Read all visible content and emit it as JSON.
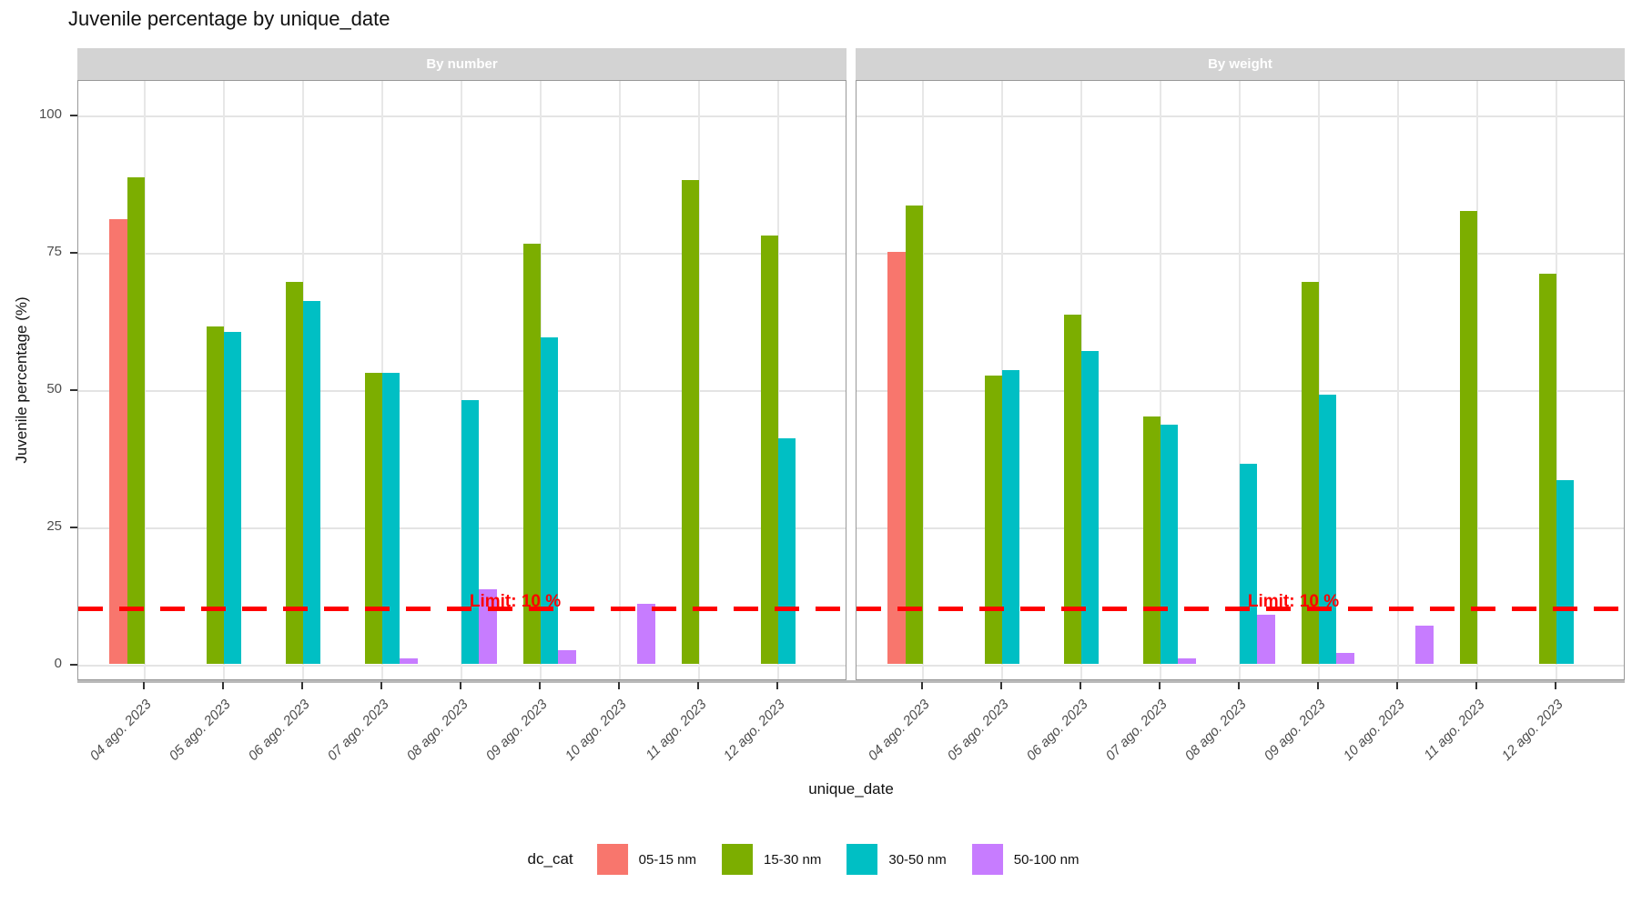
{
  "title": "Juvenile percentage by unique_date",
  "y_axis": {
    "title": "Juvenile percentage (%)",
    "ticks": [
      0,
      25,
      50,
      75,
      100
    ]
  },
  "x_axis": {
    "title": "unique_date"
  },
  "facets": [
    "By number",
    "By weight"
  ],
  "legend": {
    "title": "dc_cat",
    "entries": [
      {
        "label": "05-15 nm",
        "color": "#F8766D"
      },
      {
        "label": "15-30 nm",
        "color": "#7CAE00"
      },
      {
        "label": "30-50 nm",
        "color": "#00BFC4"
      },
      {
        "label": "50-100 nm",
        "color": "#C77CFF"
      }
    ]
  },
  "limit": {
    "label": "Limit: 10 %",
    "value": 10,
    "color": "#FF0000"
  },
  "colors": {
    "strip_bg": "#D3D3D3",
    "strip_text": "#ffffff",
    "grid": "#E4E4E4",
    "limit_red": "#FF0000"
  },
  "chart_data": {
    "type": "bar",
    "grouped": true,
    "legend_position": "bottom",
    "grid": true,
    "ylim": [
      0,
      100
    ],
    "ylabel": "Juvenile percentage (%)",
    "xlabel": "unique_date",
    "title": "Juvenile percentage by unique_date",
    "reference_line": {
      "y": 10,
      "label": "Limit: 10 %",
      "style": "dashed",
      "color": "#FF0000"
    },
    "categories": [
      "04 ago. 2023",
      "05 ago. 2023",
      "06 ago. 2023",
      "07 ago. 2023",
      "08 ago. 2023",
      "09 ago. 2023",
      "10 ago. 2023",
      "11 ago. 2023",
      "12 ago. 2023"
    ],
    "facets": [
      {
        "label": "By number",
        "series": [
          {
            "name": "05-15 nm",
            "color": "#F8766D",
            "values": [
              81,
              null,
              null,
              null,
              null,
              null,
              null,
              null,
              null
            ]
          },
          {
            "name": "15-30 nm",
            "color": "#7CAE00",
            "values": [
              88.5,
              61.5,
              69.5,
              53,
              null,
              76.5,
              null,
              88,
              78
            ]
          },
          {
            "name": "30-50 nm",
            "color": "#00BFC4",
            "values": [
              null,
              60.5,
              66,
              53,
              48,
              59.5,
              null,
              null,
              41
            ]
          },
          {
            "name": "50-100 nm",
            "color": "#C77CFF",
            "values": [
              null,
              null,
              null,
              1,
              13.5,
              2.5,
              11,
              null,
              null
            ]
          }
        ]
      },
      {
        "label": "By weight",
        "series": [
          {
            "name": "05-15 nm",
            "color": "#F8766D",
            "values": [
              75,
              null,
              null,
              null,
              null,
              null,
              null,
              null,
              null
            ]
          },
          {
            "name": "15-30 nm",
            "color": "#7CAE00",
            "values": [
              83.5,
              52.5,
              63.5,
              45,
              null,
              69.5,
              null,
              82.5,
              71
            ]
          },
          {
            "name": "30-50 nm",
            "color": "#00BFC4",
            "values": [
              null,
              53.5,
              57,
              43.5,
              36.5,
              49,
              null,
              null,
              33.5
            ]
          },
          {
            "name": "50-100 nm",
            "color": "#C77CFF",
            "values": [
              null,
              null,
              null,
              1,
              9,
              2,
              7,
              null,
              null
            ]
          }
        ]
      }
    ]
  }
}
